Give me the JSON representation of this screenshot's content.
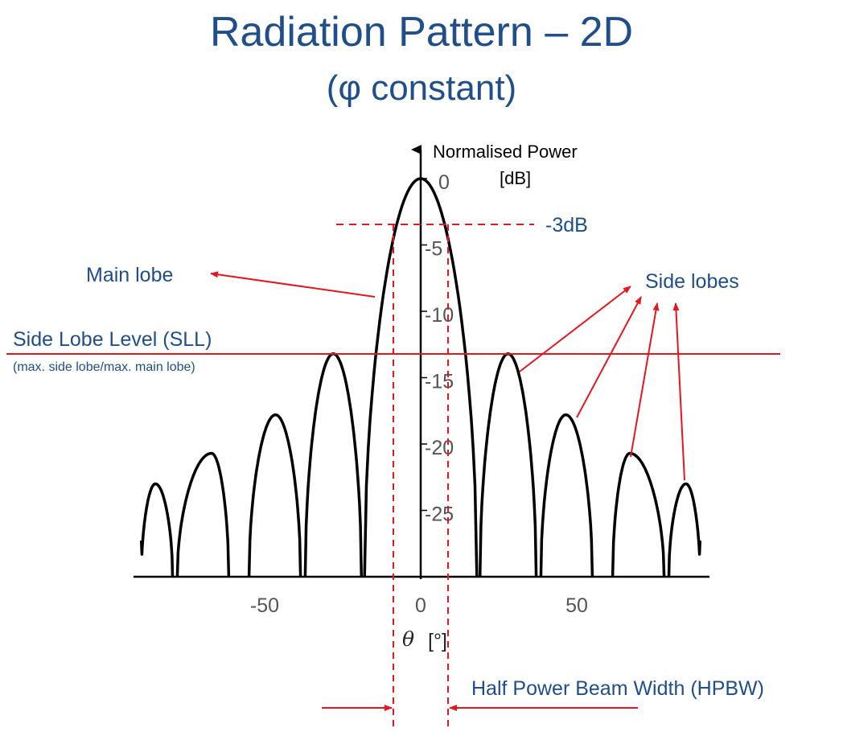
{
  "title": {
    "line1": "Radiation Pattern – 2D",
    "line2": "(φ constant)"
  },
  "colors": {
    "title": "#1f4e8c",
    "annotation": "#1f4e8c",
    "marker": "#e8141e",
    "curve": "#000000"
  },
  "chart_data": {
    "type": "line",
    "ylabel_line1": "Normalised Power",
    "ylabel_line2": "[dB]",
    "xlabel_symbol": "θ",
    "xlabel_unit": "[°]",
    "x_ticks": [
      -50,
      0,
      50
    ],
    "y_ticks": [
      0,
      -5,
      -10,
      -15,
      -20,
      -25
    ],
    "xlim": [
      -90,
      90
    ],
    "ylim": [
      -30,
      0
    ],
    "lobes": [
      {
        "start": -89.5,
        "end": -79.5,
        "peak_x": -85.0,
        "peak_db": -23.0
      },
      {
        "start": -78.0,
        "end": -61.5,
        "peak_x": -67.0,
        "peak_db": -20.7
      },
      {
        "start": -55.0,
        "end": -38.5,
        "peak_x": -46.5,
        "peak_db": -17.8
      },
      {
        "start": -37.0,
        "end": -19.0,
        "peak_x": -28.0,
        "peak_db": -13.2
      },
      {
        "start": -18.0,
        "end": 18.0,
        "peak_x": 0.0,
        "peak_db": 0.0
      },
      {
        "start": 19.0,
        "end": 37.0,
        "peak_x": 28.0,
        "peak_db": -13.2
      },
      {
        "start": 38.5,
        "end": 55.0,
        "peak_x": 46.5,
        "peak_db": -17.8
      },
      {
        "start": 61.5,
        "end": 78.0,
        "peak_x": 67.0,
        "peak_db": -20.7
      },
      {
        "start": 79.5,
        "end": 89.5,
        "peak_x": 85.0,
        "peak_db": -23.0
      }
    ],
    "hpbw_db": -3,
    "hpbw_half_width_deg": 9,
    "sll_db": -13.2
  },
  "annotations": {
    "minus3db": "-3dB",
    "main_lobe": "Main lobe",
    "side_lobes": "Side lobes",
    "sll_title": "Side Lobe Level (SLL)",
    "sll_sub": "(max. side lobe/max. main lobe)",
    "hpbw": "Half Power Beam Width (HPBW)"
  }
}
